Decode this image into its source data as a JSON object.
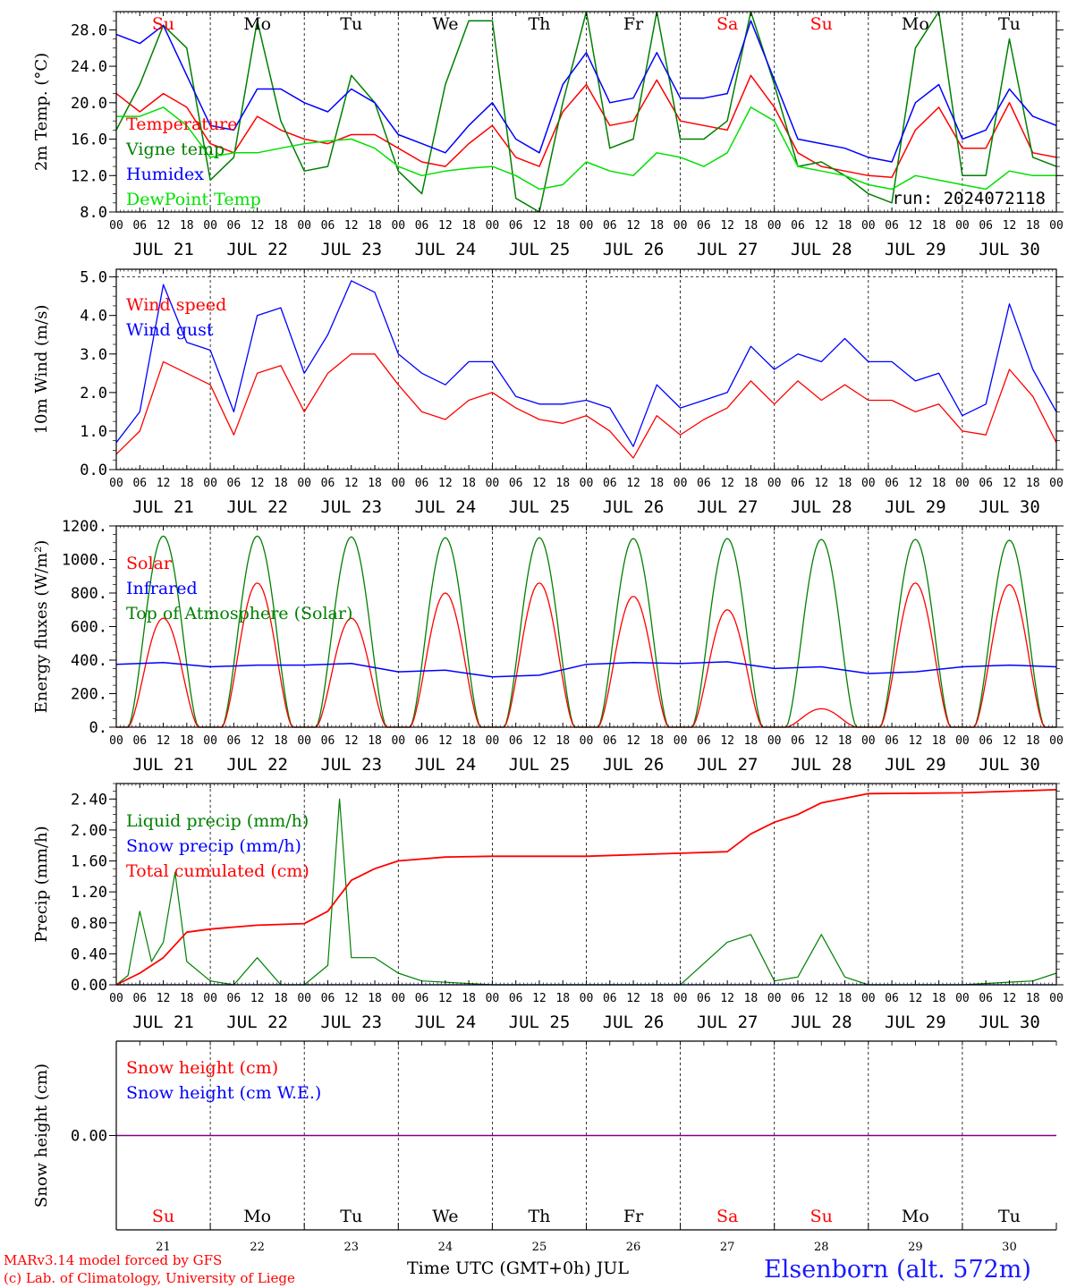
{
  "x_days": [
    "JUL 21",
    "JUL 22",
    "JUL 23",
    "JUL 24",
    "JUL 25",
    "JUL 26",
    "JUL 27",
    "JUL 28",
    "JUL 29",
    "JUL 30"
  ],
  "hour_ticks": [
    "00",
    "06",
    "12",
    "18"
  ],
  "weekdays": [
    {
      "label": "Su",
      "color": "#ff0000"
    },
    {
      "label": "Mo",
      "color": "#000000"
    },
    {
      "label": "Tu",
      "color": "#000000"
    },
    {
      "label": "We",
      "color": "#000000"
    },
    {
      "label": "Th",
      "color": "#000000"
    },
    {
      "label": "Fr",
      "color": "#000000"
    },
    {
      "label": "Sa",
      "color": "#ff0000"
    },
    {
      "label": "Su",
      "color": "#ff0000"
    },
    {
      "label": "Mo",
      "color": "#000000"
    },
    {
      "label": "Tu",
      "color": "#000000"
    }
  ],
  "day_numbers": [
    "21",
    "22",
    "23",
    "24",
    "25",
    "26",
    "27",
    "28",
    "29",
    "30"
  ],
  "footer": {
    "model": "MARv3.14 model forced by GFS",
    "copyright": "(c) Lab. of Climatology, University of Liege",
    "xaxis": "Time UTC (GMT+0h) JUL",
    "station": "Elsenborn (alt. 572m)"
  },
  "chart_data": [
    {
      "type": "line",
      "ylabel": "2m Temp. (°C)",
      "ylim": [
        8.0,
        30.0
      ],
      "yticks": [
        "8.0",
        "12.0",
        "16.0",
        "20.0",
        "24.0",
        "28.0"
      ],
      "ytick_values": [
        8,
        12,
        16,
        20,
        24,
        28
      ],
      "annotation": "run: 2024072118",
      "x": [
        0,
        6,
        12,
        18,
        24,
        30,
        36,
        42,
        48,
        54,
        60,
        66,
        72,
        78,
        84,
        90,
        96,
        102,
        108,
        114,
        120,
        126,
        132,
        138,
        144,
        150,
        156,
        162,
        168,
        174,
        180,
        186,
        192,
        198,
        204,
        210,
        216,
        222,
        228,
        234,
        240
      ],
      "series": [
        {
          "name": "Temperature",
          "color": "#ff0000",
          "values": [
            21.0,
            19.0,
            21.0,
            19.5,
            15.5,
            14.5,
            18.5,
            17.0,
            16.0,
            15.5,
            16.5,
            16.5,
            15.0,
            13.5,
            13.0,
            15.5,
            17.5,
            14.0,
            13.0,
            19.0,
            22.0,
            17.5,
            18.0,
            22.5,
            18.0,
            17.5,
            17.0,
            23.0,
            19.5,
            14.5,
            13.0,
            12.5,
            12.0,
            11.8,
            17.0,
            19.5,
            15.0,
            15.0,
            20.0,
            14.5,
            14.0
          ]
        },
        {
          "name": "Vigne temp",
          "color": "#008000",
          "values": [
            17.0,
            22.0,
            28.5,
            26.0,
            11.5,
            14.0,
            29.0,
            18.0,
            12.5,
            13.0,
            23.0,
            20.0,
            12.5,
            10.0,
            22.0,
            29.0,
            29.0,
            9.5,
            8.0,
            20.0,
            30.0,
            15.0,
            16.0,
            30.0,
            16.0,
            16.0,
            18.0,
            30.0,
            22.0,
            13.0,
            13.5,
            12.0,
            10.0,
            9.0,
            26.0,
            30.0,
            12.0,
            12.0,
            27.0,
            14.0,
            13.0
          ]
        },
        {
          "name": "Humidex",
          "color": "#0000ff",
          "values": [
            27.5,
            26.5,
            28.5,
            23.0,
            17.5,
            17.0,
            21.5,
            21.5,
            20.0,
            19.0,
            21.5,
            20.0,
            16.5,
            15.5,
            14.5,
            17.5,
            20.0,
            16.0,
            14.5,
            22.0,
            25.5,
            20.0,
            20.5,
            25.5,
            20.5,
            20.5,
            21.0,
            29.0,
            22.5,
            16.0,
            15.5,
            15.0,
            14.0,
            13.5,
            20.0,
            22.0,
            16.0,
            17.0,
            21.5,
            18.5,
            17.5
          ]
        },
        {
          "name": "DewPoint Temp",
          "color": "#00e000",
          "values": [
            18.5,
            18.5,
            19.5,
            17.5,
            14.0,
            14.5,
            14.5,
            15.0,
            15.5,
            15.8,
            16.0,
            15.0,
            13.0,
            12.0,
            12.5,
            12.8,
            13.0,
            12.0,
            10.5,
            11.0,
            13.5,
            12.5,
            12.0,
            14.5,
            14.0,
            13.0,
            14.5,
            19.5,
            18.0,
            13.0,
            12.5,
            12.0,
            11.0,
            10.5,
            12.0,
            11.5,
            11.0,
            10.5,
            12.5,
            12.0,
            12.0
          ]
        }
      ]
    },
    {
      "type": "line",
      "ylabel": "10m Wind (m/s)",
      "ylim": [
        0.0,
        5.2
      ],
      "yticks": [
        "0.0",
        "1.0",
        "2.0",
        "3.0",
        "4.0",
        "5.0"
      ],
      "ytick_values": [
        0,
        1,
        2,
        3,
        4,
        5
      ],
      "dashed_level": 5.0,
      "x": [
        0,
        6,
        12,
        18,
        24,
        30,
        36,
        42,
        48,
        54,
        60,
        66,
        72,
        78,
        84,
        90,
        96,
        102,
        108,
        114,
        120,
        126,
        132,
        138,
        144,
        150,
        156,
        162,
        168,
        174,
        180,
        186,
        192,
        198,
        204,
        210,
        216,
        222,
        228,
        234,
        240
      ],
      "series": [
        {
          "name": "Wind speed",
          "color": "#ff0000",
          "values": [
            0.4,
            1.0,
            2.8,
            2.5,
            2.2,
            0.9,
            2.5,
            2.7,
            1.5,
            2.5,
            3.0,
            3.0,
            2.2,
            1.5,
            1.3,
            1.8,
            2.0,
            1.6,
            1.3,
            1.2,
            1.4,
            1.0,
            0.3,
            1.4,
            0.9,
            1.3,
            1.6,
            2.3,
            1.7,
            2.3,
            1.8,
            2.2,
            1.8,
            1.8,
            1.5,
            1.7,
            1.0,
            0.9,
            2.6,
            1.9,
            0.7
          ]
        },
        {
          "name": "Wind gust",
          "color": "#0000ff",
          "values": [
            0.7,
            1.5,
            4.8,
            3.3,
            3.1,
            1.5,
            4.0,
            4.2,
            2.5,
            3.5,
            4.9,
            4.6,
            3.0,
            2.5,
            2.2,
            2.8,
            2.8,
            1.9,
            1.7,
            1.7,
            1.8,
            1.6,
            0.6,
            2.2,
            1.6,
            1.8,
            2.0,
            3.2,
            2.6,
            3.0,
            2.8,
            3.4,
            2.8,
            2.8,
            2.3,
            2.5,
            1.4,
            1.7,
            4.3,
            2.6,
            1.5
          ]
        }
      ]
    },
    {
      "type": "line",
      "ylabel": "Energy fluxes (W/m²)",
      "ylim": [
        0,
        1200
      ],
      "yticks": [
        "0.",
        "200.",
        "400.",
        "600.",
        "800.",
        "1000.",
        "1200."
      ],
      "ytick_values": [
        0,
        200,
        400,
        600,
        800,
        1000,
        1200
      ],
      "daily_peak_hour": 12,
      "series": [
        {
          "name": "Solar",
          "color": "#ff0000",
          "daily_peaks": [
            650,
            860,
            650,
            800,
            860,
            780,
            700,
            110,
            860,
            850
          ]
        },
        {
          "name": "Infrared",
          "color": "#0000ff",
          "daily_values": [
            375,
            360,
            370,
            330,
            300,
            375,
            380,
            350,
            320,
            360
          ]
        },
        {
          "name": "Top of Atmosphere (Solar)",
          "color": "#008000",
          "daily_peaks": [
            1140,
            1140,
            1135,
            1130,
            1130,
            1125,
            1125,
            1120,
            1120,
            1115
          ]
        }
      ]
    },
    {
      "type": "line",
      "ylabel": "Precip (mm/h)",
      "ylim": [
        0.0,
        2.6
      ],
      "yticks": [
        "0.00",
        "0.40",
        "0.80",
        "1.20",
        "1.60",
        "2.00",
        "2.40"
      ],
      "ytick_values": [
        0,
        0.4,
        0.8,
        1.2,
        1.6,
        2.0,
        2.4
      ],
      "series": [
        {
          "name": "Liquid precip (mm/h)",
          "color": "#008000",
          "x": [
            0,
            3,
            6,
            9,
            12,
            15,
            18,
            24,
            30,
            36,
            42,
            48,
            54,
            57,
            60,
            66,
            72,
            78,
            96,
            120,
            144,
            156,
            162,
            168,
            174,
            180,
            186,
            192,
            216,
            234,
            240
          ],
          "values": [
            0.0,
            0.12,
            0.95,
            0.3,
            0.55,
            1.45,
            0.3,
            0.05,
            0.0,
            0.35,
            0.0,
            0.0,
            0.25,
            2.4,
            0.35,
            0.35,
            0.15,
            0.05,
            0.0,
            0.0,
            0.0,
            0.55,
            0.65,
            0.05,
            0.1,
            0.65,
            0.1,
            0.0,
            0.0,
            0.05,
            0.15
          ]
        },
        {
          "name": "Snow precip (mm/h)",
          "color": "#0000ff",
          "x": [
            0,
            240
          ],
          "values": [
            0.0,
            0.0
          ]
        },
        {
          "name": "Total cumulated (cm)",
          "color": "#ff0000",
          "x": [
            0,
            6,
            12,
            18,
            24,
            36,
            48,
            54,
            60,
            66,
            72,
            84,
            96,
            120,
            144,
            156,
            162,
            168,
            174,
            180,
            192,
            216,
            240
          ],
          "values": [
            0.0,
            0.15,
            0.35,
            0.68,
            0.72,
            0.77,
            0.79,
            0.95,
            1.35,
            1.5,
            1.6,
            1.65,
            1.66,
            1.66,
            1.7,
            1.72,
            1.95,
            2.1,
            2.2,
            2.35,
            2.47,
            2.48,
            2.52
          ]
        }
      ]
    },
    {
      "type": "line",
      "ylabel": "Snow height (cm)",
      "yticks": [
        "0.00"
      ],
      "ytick_values": [
        0
      ],
      "series": [
        {
          "name": "Snow height (cm)",
          "color": "#ff0000",
          "x": [
            0,
            240
          ],
          "values": [
            0.0,
            0.0
          ]
        },
        {
          "name": "Snow height (cm W.E.)",
          "color": "#0000ff",
          "x": [
            0,
            240
          ],
          "values": [
            0.0,
            0.0
          ]
        }
      ]
    }
  ]
}
